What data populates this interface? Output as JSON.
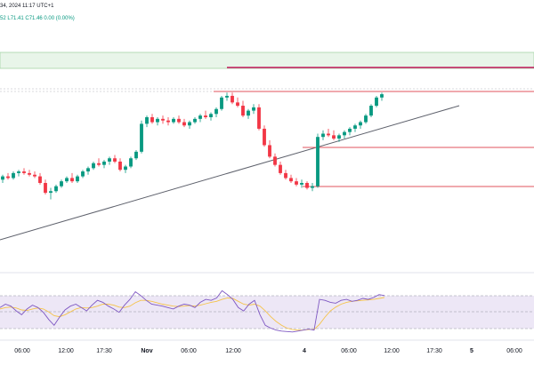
{
  "header": {
    "date_time": "34, 2024 11:17 UTC+1",
    "ohlc_prefix": "52",
    "low": "L71.41",
    "close": "C71.46",
    "change": "0.00 (0.00%)"
  },
  "colors": {
    "up": "#089981",
    "down": "#f23645",
    "trend_line": "#5d606b",
    "level_line": "#e0535d",
    "zone_fill": "#e8f5e9",
    "zone_border": "#a5d6a7",
    "top_level": "#c2185b",
    "rsi_line": "#7e57c2",
    "rsi_ma": "#f5c34a",
    "rsi_band": "#ede7f6",
    "axis_text": "#131722"
  },
  "chart_data": [
    {
      "type": "candlestick",
      "title": "",
      "x_ticks": [
        "06:00",
        "12:00",
        "17:30",
        "Nov",
        "06:00",
        "12:00",
        "4",
        "06:00",
        "12:00",
        "17:30",
        "5",
        "06:00"
      ],
      "trend_line": {
        "from": [
          0,
          0.18
        ],
        "to": [
          1,
          0.78
        ]
      },
      "horizontal_levels": [
        {
          "name": "resistance-high",
          "from_index": 240,
          "value": 0.9
        },
        {
          "name": "level-mid",
          "from_index": 340,
          "value": 0.57
        },
        {
          "name": "level-low",
          "from_index": 340,
          "value": 0.36
        }
      ],
      "candles": [
        [
          0.42,
          0.45,
          0.4,
          0.44
        ],
        [
          0.44,
          0.46,
          0.42,
          0.43
        ],
        [
          0.43,
          0.47,
          0.42,
          0.46
        ],
        [
          0.46,
          0.48,
          0.44,
          0.47
        ],
        [
          0.47,
          0.49,
          0.45,
          0.46
        ],
        [
          0.46,
          0.48,
          0.44,
          0.45
        ],
        [
          0.45,
          0.47,
          0.43,
          0.44
        ],
        [
          0.44,
          0.46,
          0.39,
          0.4
        ],
        [
          0.4,
          0.42,
          0.33,
          0.34
        ],
        [
          0.34,
          0.37,
          0.3,
          0.35
        ],
        [
          0.35,
          0.39,
          0.34,
          0.38
        ],
        [
          0.38,
          0.42,
          0.37,
          0.41
        ],
        [
          0.41,
          0.44,
          0.4,
          0.43
        ],
        [
          0.43,
          0.46,
          0.4,
          0.41
        ],
        [
          0.41,
          0.45,
          0.4,
          0.44
        ],
        [
          0.44,
          0.48,
          0.43,
          0.47
        ],
        [
          0.47,
          0.5,
          0.45,
          0.49
        ],
        [
          0.49,
          0.53,
          0.48,
          0.52
        ],
        [
          0.52,
          0.55,
          0.5,
          0.51
        ],
        [
          0.51,
          0.54,
          0.49,
          0.53
        ],
        [
          0.53,
          0.56,
          0.51,
          0.55
        ],
        [
          0.55,
          0.57,
          0.52,
          0.53
        ],
        [
          0.53,
          0.55,
          0.47,
          0.48
        ],
        [
          0.48,
          0.51,
          0.46,
          0.5
        ],
        [
          0.5,
          0.56,
          0.49,
          0.55
        ],
        [
          0.55,
          0.6,
          0.54,
          0.59
        ],
        [
          0.59,
          0.78,
          0.58,
          0.76
        ],
        [
          0.76,
          0.81,
          0.74,
          0.8
        ],
        [
          0.8,
          0.82,
          0.76,
          0.77
        ],
        [
          0.77,
          0.8,
          0.75,
          0.79
        ],
        [
          0.79,
          0.81,
          0.76,
          0.78
        ],
        [
          0.78,
          0.8,
          0.75,
          0.77
        ],
        [
          0.77,
          0.8,
          0.76,
          0.79
        ],
        [
          0.79,
          0.81,
          0.76,
          0.77
        ],
        [
          0.77,
          0.79,
          0.74,
          0.75
        ],
        [
          0.75,
          0.78,
          0.73,
          0.77
        ],
        [
          0.77,
          0.8,
          0.76,
          0.79
        ],
        [
          0.79,
          0.82,
          0.77,
          0.81
        ],
        [
          0.81,
          0.84,
          0.79,
          0.8
        ],
        [
          0.8,
          0.83,
          0.78,
          0.82
        ],
        [
          0.82,
          0.86,
          0.8,
          0.85
        ],
        [
          0.85,
          0.93,
          0.84,
          0.92
        ],
        [
          0.92,
          0.95,
          0.9,
          0.93
        ],
        [
          0.93,
          0.95,
          0.88,
          0.89
        ],
        [
          0.89,
          0.92,
          0.86,
          0.87
        ],
        [
          0.87,
          0.9,
          0.8,
          0.81
        ],
        [
          0.81,
          0.85,
          0.79,
          0.84
        ],
        [
          0.84,
          0.88,
          0.82,
          0.86
        ],
        [
          0.86,
          0.88,
          0.72,
          0.73
        ],
        [
          0.73,
          0.75,
          0.62,
          0.63
        ],
        [
          0.63,
          0.66,
          0.55,
          0.56
        ],
        [
          0.56,
          0.58,
          0.5,
          0.51
        ],
        [
          0.51,
          0.53,
          0.45,
          0.46
        ],
        [
          0.46,
          0.48,
          0.42,
          0.43
        ],
        [
          0.43,
          0.45,
          0.4,
          0.41
        ],
        [
          0.41,
          0.43,
          0.38,
          0.39
        ],
        [
          0.39,
          0.42,
          0.37,
          0.4
        ],
        [
          0.4,
          0.41,
          0.36,
          0.37
        ],
        [
          0.37,
          0.4,
          0.35,
          0.38
        ],
        [
          0.38,
          0.7,
          0.37,
          0.68
        ],
        [
          0.68,
          0.72,
          0.66,
          0.7
        ],
        [
          0.7,
          0.73,
          0.68,
          0.69
        ],
        [
          0.69,
          0.72,
          0.66,
          0.67
        ],
        [
          0.67,
          0.7,
          0.65,
          0.69
        ],
        [
          0.69,
          0.72,
          0.67,
          0.71
        ],
        [
          0.71,
          0.74,
          0.69,
          0.73
        ],
        [
          0.73,
          0.76,
          0.71,
          0.75
        ],
        [
          0.75,
          0.78,
          0.73,
          0.77
        ],
        [
          0.77,
          0.82,
          0.76,
          0.81
        ],
        [
          0.81,
          0.88,
          0.8,
          0.87
        ],
        [
          0.87,
          0.93,
          0.86,
          0.92
        ],
        [
          0.92,
          0.95,
          0.9,
          0.94
        ]
      ]
    },
    {
      "type": "line",
      "title": "",
      "series": [
        {
          "values": [
            0.55,
            0.62,
            0.58,
            0.48,
            0.4,
            0.52,
            0.6,
            0.55,
            0.45,
            0.3,
            0.18,
            0.35,
            0.5,
            0.58,
            0.62,
            0.55,
            0.48,
            0.6,
            0.7,
            0.66,
            0.58,
            0.52,
            0.45,
            0.6,
            0.72,
            0.88,
            0.8,
            0.7,
            0.62,
            0.6,
            0.58,
            0.55,
            0.52,
            0.58,
            0.62,
            0.6,
            0.55,
            0.66,
            0.72,
            0.7,
            0.75,
            0.9,
            0.82,
            0.72,
            0.55,
            0.48,
            0.62,
            0.7,
            0.4,
            0.18,
            0.12,
            0.08,
            0.06,
            0.05,
            0.04,
            0.06,
            0.08,
            0.1,
            0.08,
            0.72,
            0.7,
            0.66,
            0.64,
            0.7,
            0.72,
            0.68,
            0.7,
            0.74,
            0.72,
            0.76,
            0.82,
            0.8
          ]
        },
        {
          "values": [
            0.52,
            0.55,
            0.56,
            0.54,
            0.5,
            0.49,
            0.52,
            0.54,
            0.52,
            0.46,
            0.38,
            0.36,
            0.4,
            0.46,
            0.52,
            0.55,
            0.54,
            0.55,
            0.58,
            0.62,
            0.62,
            0.6,
            0.56,
            0.55,
            0.58,
            0.65,
            0.7,
            0.7,
            0.68,
            0.65,
            0.62,
            0.6,
            0.58,
            0.57,
            0.58,
            0.59,
            0.58,
            0.6,
            0.63,
            0.66,
            0.68,
            0.72,
            0.75,
            0.74,
            0.68,
            0.62,
            0.6,
            0.62,
            0.58,
            0.48,
            0.36,
            0.26,
            0.18,
            0.12,
            0.09,
            0.08,
            0.08,
            0.09,
            0.09,
            0.2,
            0.35,
            0.48,
            0.56,
            0.62,
            0.66,
            0.68,
            0.69,
            0.7,
            0.71,
            0.72,
            0.74,
            0.76
          ]
        }
      ]
    }
  ]
}
